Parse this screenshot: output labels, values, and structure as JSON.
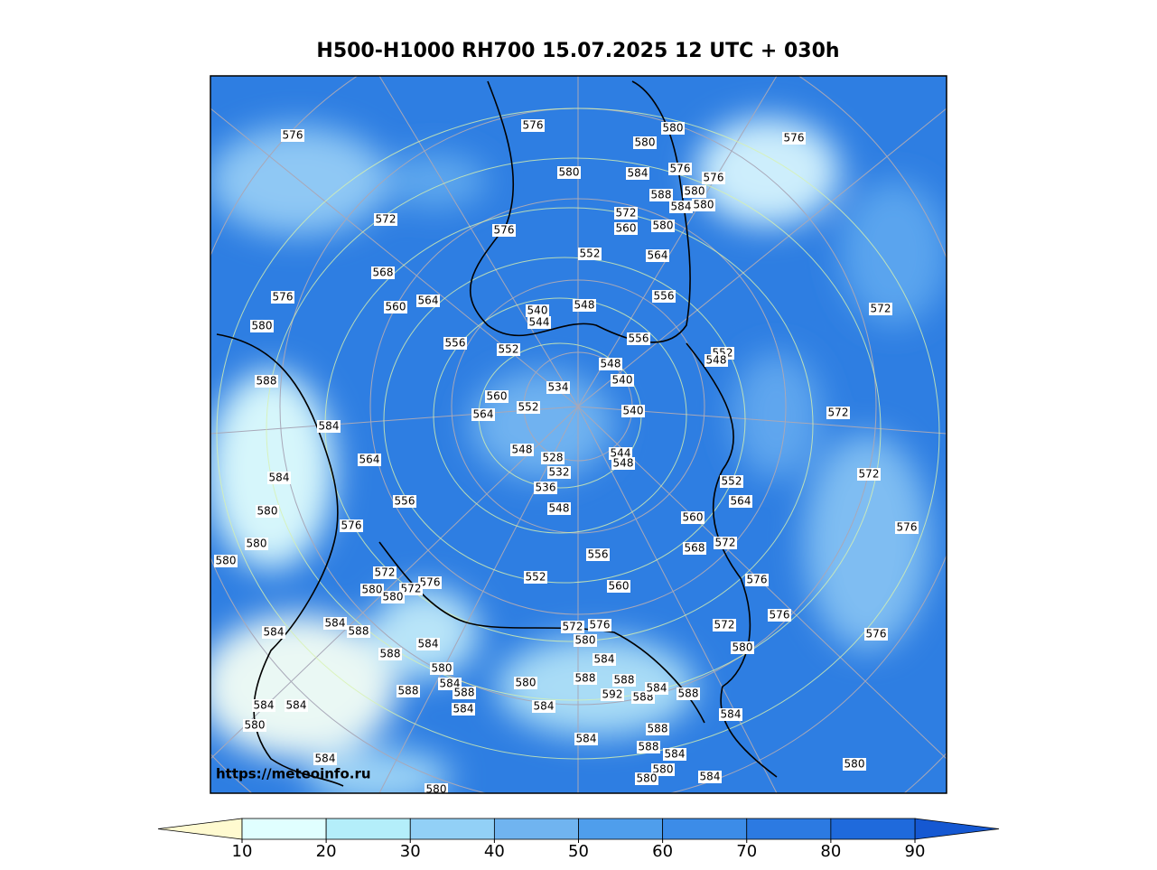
{
  "title": "H500-H1000 RH700 15.07.2025 12 UTC + 030h",
  "watermark": "https://meteoinfo.ru",
  "contour_labels": [
    576,
    576,
    580,
    580,
    576,
    580,
    584,
    576,
    576,
    588,
    580,
    584,
    580,
    572,
    572,
    580,
    560,
    576,
    564,
    552,
    568,
    576,
    556,
    560,
    564,
    548,
    540,
    544,
    580,
    572,
    556,
    552,
    556,
    552,
    548,
    548,
    540,
    588,
    560,
    534,
    552,
    564,
    540,
    572,
    584,
    548,
    528,
    544,
    548,
    564,
    532,
    584,
    572,
    552,
    564,
    536,
    556,
    548,
    580,
    560,
    576,
    576,
    580,
    568,
    572,
    556,
    580,
    552,
    572,
    576,
    576,
    580,
    572,
    580,
    560,
    584,
    588,
    584,
    572,
    576,
    576,
    572,
    580,
    584,
    580,
    576,
    584,
    588,
    580,
    584,
    580,
    588,
    588,
    588,
    592,
    588,
    584,
    588,
    588,
    584,
    584,
    584,
    584,
    580,
    584,
    588,
    584,
    588,
    584,
    584,
    580,
    580,
    580,
    584,
    580
  ],
  "colorbar": {
    "ticks": [
      10,
      20,
      30,
      40,
      50,
      60,
      70,
      80,
      90
    ],
    "colors": [
      "#e0ffff",
      "#b4eefa",
      "#92d0f6",
      "#70b4f0",
      "#4f9eec",
      "#3c8ce8",
      "#2c7ae2",
      "#1f6adc"
    ],
    "under_color": "#fffad0",
    "over_color": "#1558d2"
  }
}
